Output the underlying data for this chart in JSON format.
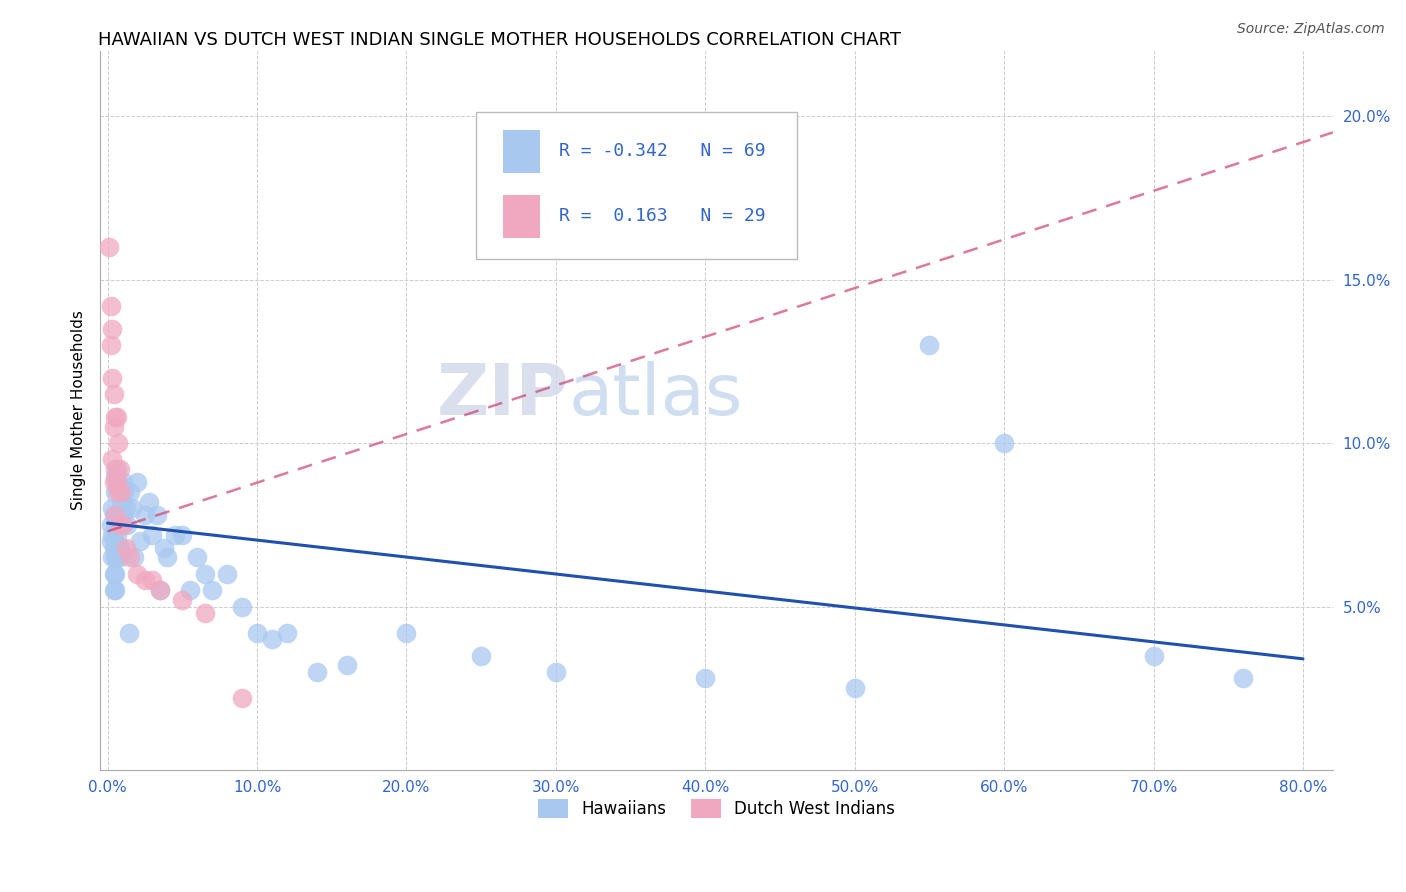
{
  "title": "HAWAIIAN VS DUTCH WEST INDIAN SINGLE MOTHER HOUSEHOLDS CORRELATION CHART",
  "source": "Source: ZipAtlas.com",
  "ylabel": "Single Mother Households",
  "xlabel_ticks": [
    "0.0%",
    "10.0%",
    "20.0%",
    "30.0%",
    "40.0%",
    "50.0%",
    "60.0%",
    "70.0%",
    "80.0%"
  ],
  "xlabel_vals": [
    0,
    0.1,
    0.2,
    0.3,
    0.4,
    0.5,
    0.6,
    0.7,
    0.8
  ],
  "ylim": [
    0.0,
    0.22
  ],
  "xlim": [
    -0.005,
    0.82
  ],
  "ytick_vals": [
    0.0,
    0.05,
    0.1,
    0.15,
    0.2
  ],
  "ytick_labels": [
    "",
    "5.0%",
    "10.0%",
    "15.0%",
    "20.0%"
  ],
  "blue_label": "Hawaiians",
  "pink_label": "Dutch West Indians",
  "blue_R": "-0.342",
  "blue_N": "69",
  "pink_R": "0.163",
  "pink_N": "29",
  "blue_color": "#a8c8f0",
  "pink_color": "#f0a8c0",
  "blue_line_color": "#2050b0",
  "pink_line_color": "#d04070",
  "watermark_zip": "ZIP",
  "watermark_atlas": "atlas",
  "hawaiians_x": [
    0.002,
    0.002,
    0.003,
    0.003,
    0.003,
    0.004,
    0.004,
    0.004,
    0.004,
    0.005,
    0.005,
    0.005,
    0.005,
    0.005,
    0.005,
    0.005,
    0.006,
    0.006,
    0.006,
    0.006,
    0.006,
    0.007,
    0.007,
    0.007,
    0.008,
    0.008,
    0.008,
    0.009,
    0.009,
    0.01,
    0.01,
    0.011,
    0.012,
    0.013,
    0.014,
    0.015,
    0.016,
    0.018,
    0.02,
    0.022,
    0.025,
    0.028,
    0.03,
    0.033,
    0.035,
    0.038,
    0.04,
    0.045,
    0.05,
    0.055,
    0.06,
    0.065,
    0.07,
    0.08,
    0.09,
    0.1,
    0.11,
    0.12,
    0.14,
    0.16,
    0.2,
    0.25,
    0.3,
    0.4,
    0.5,
    0.55,
    0.6,
    0.7,
    0.76
  ],
  "hawaiians_y": [
    0.075,
    0.07,
    0.08,
    0.072,
    0.065,
    0.078,
    0.068,
    0.06,
    0.055,
    0.09,
    0.085,
    0.075,
    0.07,
    0.065,
    0.06,
    0.055,
    0.092,
    0.088,
    0.078,
    0.072,
    0.065,
    0.088,
    0.078,
    0.068,
    0.085,
    0.075,
    0.065,
    0.082,
    0.068,
    0.088,
    0.078,
    0.085,
    0.08,
    0.075,
    0.042,
    0.085,
    0.08,
    0.065,
    0.088,
    0.07,
    0.078,
    0.082,
    0.072,
    0.078,
    0.055,
    0.068,
    0.065,
    0.072,
    0.072,
    0.055,
    0.065,
    0.06,
    0.055,
    0.06,
    0.05,
    0.042,
    0.04,
    0.042,
    0.03,
    0.032,
    0.042,
    0.035,
    0.03,
    0.028,
    0.025,
    0.13,
    0.1,
    0.035,
    0.028
  ],
  "dutch_x": [
    0.001,
    0.002,
    0.002,
    0.003,
    0.003,
    0.003,
    0.004,
    0.004,
    0.004,
    0.005,
    0.005,
    0.005,
    0.006,
    0.006,
    0.007,
    0.007,
    0.008,
    0.008,
    0.009,
    0.01,
    0.012,
    0.015,
    0.02,
    0.025,
    0.03,
    0.035,
    0.05,
    0.065,
    0.09
  ],
  "dutch_y": [
    0.16,
    0.142,
    0.13,
    0.135,
    0.12,
    0.095,
    0.115,
    0.105,
    0.088,
    0.108,
    0.092,
    0.078,
    0.108,
    0.088,
    0.1,
    0.085,
    0.092,
    0.075,
    0.085,
    0.075,
    0.068,
    0.065,
    0.06,
    0.058,
    0.058,
    0.055,
    0.052,
    0.048,
    0.022
  ],
  "blue_line_x": [
    0.0,
    0.8
  ],
  "blue_line_y": [
    0.0755,
    0.034
  ],
  "pink_line_x": [
    0.0,
    0.82
  ],
  "pink_line_y": [
    0.073,
    0.195
  ]
}
